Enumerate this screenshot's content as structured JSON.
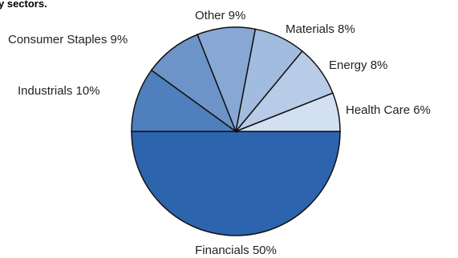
{
  "chart_data": {
    "type": "pie",
    "title": "y sectors.",
    "slices": [
      {
        "label": "Financials",
        "value": 50,
        "text": "Financials 50%",
        "color": "#2c65ad"
      },
      {
        "label": "Industrials",
        "value": 10,
        "text": "Industrials 10%",
        "color": "#4f7fbd"
      },
      {
        "label": "Consumer Staples",
        "value": 9,
        "text": "Consumer Staples 9%",
        "color": "#6d94c9"
      },
      {
        "label": "Other",
        "value": 9,
        "text": "Other 9%",
        "color": "#87a8d4"
      },
      {
        "label": "Materials",
        "value": 8,
        "text": "Materials 8%",
        "color": "#a1bcdf"
      },
      {
        "label": "Energy",
        "value": 8,
        "text": "Energy 8%",
        "color": "#b8cce8"
      },
      {
        "label": "Health Care",
        "value": 6,
        "text": "Health Care 6%",
        "color": "#d3e0f1"
      }
    ]
  }
}
